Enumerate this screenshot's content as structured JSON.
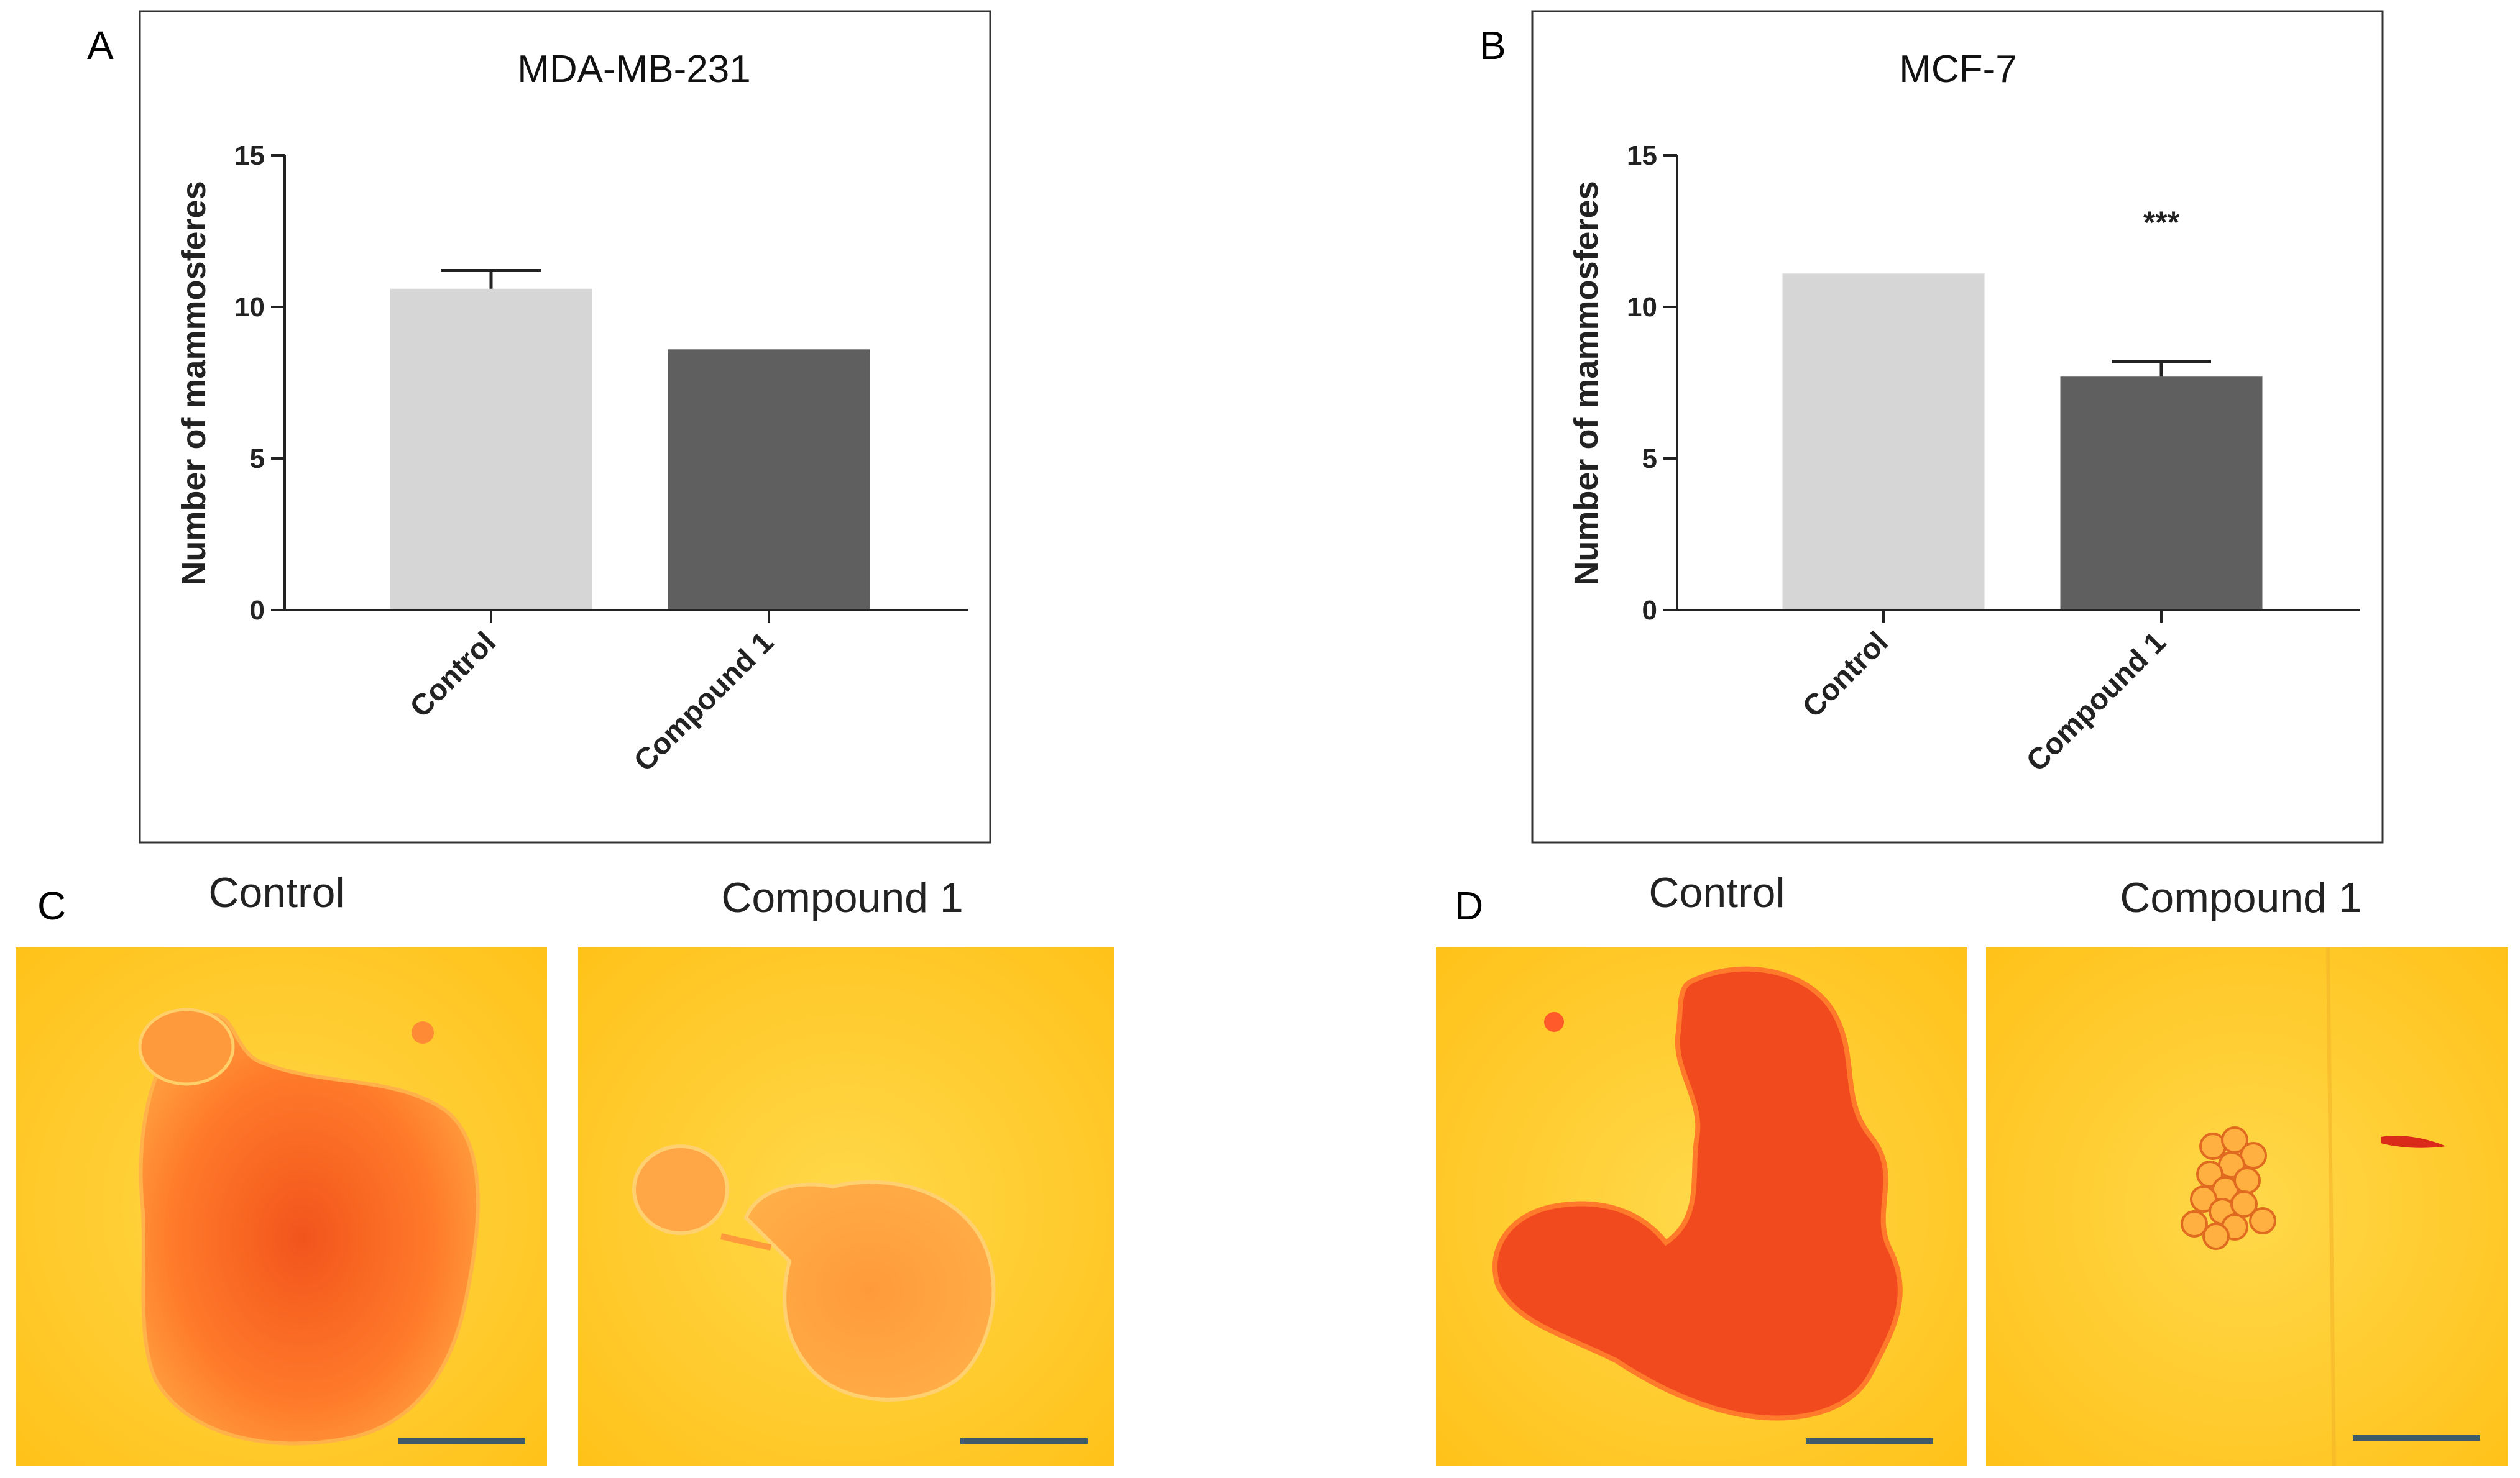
{
  "chart_data": [
    {
      "type": "bar",
      "panel": "A",
      "title": "MDA-MB-231",
      "ylabel": "Number of mammosferes",
      "xlabel": "",
      "ylim": [
        0,
        15
      ],
      "yticks": [
        0,
        5,
        10,
        15
      ],
      "categories": [
        "Control",
        "Compound 1"
      ],
      "values": [
        10.6,
        8.6
      ],
      "errors": [
        0.6,
        0
      ],
      "colors": [
        "#d6d6d6",
        "#5f5f5f"
      ],
      "annotation": ""
    },
    {
      "type": "bar",
      "panel": "B",
      "title": "MCF-7",
      "ylabel": "Number of mammosferes",
      "xlabel": "",
      "ylim": [
        0,
        15
      ],
      "yticks": [
        0,
        5,
        10,
        15
      ],
      "categories": [
        "Control",
        "Compound 1"
      ],
      "values": [
        11.1,
        7.7
      ],
      "errors": [
        0,
        0.5
      ],
      "colors": [
        "#d6d6d6",
        "#5f5f5f"
      ],
      "annotation": "***"
    }
  ],
  "images": {
    "c_letter": "C",
    "d_letter": "D",
    "c_control_label": "Control",
    "c_compound_label": "Compound 1",
    "d_control_label": "Control",
    "d_compound_label": "Compound 1",
    "background_color": "#ffcc33",
    "cell_color": "#ff5a1a",
    "scale_bar_color": "#3f5a6a"
  }
}
